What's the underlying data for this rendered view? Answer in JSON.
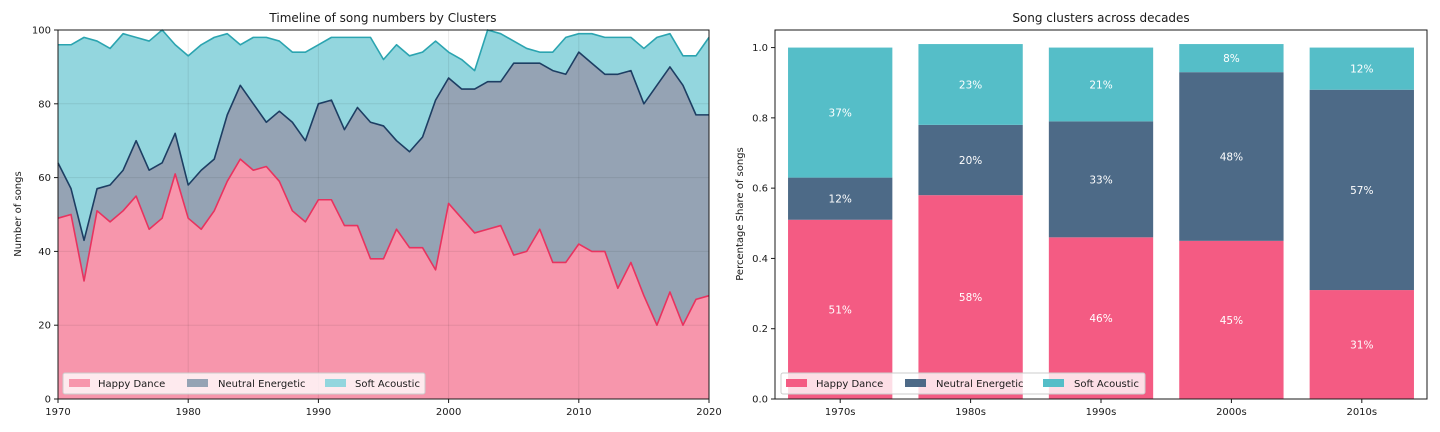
{
  "colors": {
    "happy": "#f45b83",
    "neutral": "#4d6a87",
    "soft": "#55bec8",
    "happy_line": "#e8335f",
    "neutral_line": "#1d3e63",
    "soft_line": "#2ba4b0",
    "happy_fill": "#f796ac",
    "neutral_fill": "#95a3b4",
    "soft_fill": "#93d6de"
  },
  "chart_data": [
    {
      "type": "area",
      "title": "Timeline of song numbers by Clusters",
      "xlabel": "",
      "ylabel": "Number of songs",
      "xlim": [
        1970,
        2020
      ],
      "ylim": [
        0,
        100
      ],
      "x_ticks": [
        "1970",
        "1980",
        "1990",
        "2000",
        "2010",
        "2020"
      ],
      "y_ticks": [
        "0",
        "20",
        "40",
        "60",
        "80",
        "100"
      ],
      "grid": true,
      "legend_position": "lower-left",
      "x": [
        1970,
        1971,
        1972,
        1973,
        1974,
        1975,
        1976,
        1977,
        1978,
        1979,
        1980,
        1981,
        1982,
        1983,
        1984,
        1985,
        1986,
        1987,
        1988,
        1989,
        1990,
        1991,
        1992,
        1993,
        1994,
        1995,
        1996,
        1997,
        1998,
        1999,
        2000,
        2001,
        2002,
        2003,
        2004,
        2005,
        2006,
        2007,
        2008,
        2009,
        2010,
        2011,
        2012,
        2013,
        2014,
        2015,
        2016,
        2017,
        2018,
        2019,
        2020
      ],
      "series": [
        {
          "name": "Happy Dance",
          "key": "happy",
          "values": [
            49,
            50,
            32,
            51,
            48,
            51,
            55,
            46,
            49,
            61,
            49,
            46,
            51,
            59,
            65,
            62,
            63,
            59,
            51,
            48,
            54,
            54,
            47,
            47,
            38,
            38,
            46,
            41,
            41,
            35,
            53,
            49,
            45,
            46,
            47,
            39,
            40,
            46,
            37,
            37,
            42,
            40,
            40,
            30,
            37,
            28,
            20,
            29,
            20,
            27,
            28
          ]
        },
        {
          "name": "Neutral Energetic",
          "key": "neutral",
          "values": [
            64,
            57,
            43,
            57,
            58,
            62,
            70,
            62,
            64,
            72,
            58,
            62,
            65,
            77,
            85,
            80,
            75,
            78,
            75,
            70,
            80,
            81,
            73,
            79,
            75,
            74,
            70,
            67,
            71,
            81,
            87,
            84,
            84,
            86,
            86,
            91,
            91,
            91,
            89,
            88,
            94,
            91,
            88,
            88,
            89,
            80,
            85,
            90,
            85,
            77,
            77
          ]
        },
        {
          "name": "Soft Acoustic",
          "key": "soft",
          "values": [
            96,
            96,
            98,
            97,
            95,
            99,
            98,
            97,
            100,
            96,
            93,
            96,
            98,
            99,
            96,
            98,
            98,
            97,
            94,
            94,
            96,
            98,
            98,
            98,
            98,
            92,
            96,
            93,
            94,
            97,
            94,
            92,
            89,
            100,
            99,
            97,
            95,
            94,
            94,
            98,
            99,
            99,
            98,
            98,
            98,
            95,
            98,
            99,
            93,
            93,
            98
          ]
        }
      ]
    },
    {
      "type": "bar",
      "stacked": true,
      "title": "Song clusters across decades",
      "xlabel": "",
      "ylabel": "Percentage Share of songs",
      "ylim": [
        0,
        1.05
      ],
      "y_ticks": [
        "0.0",
        "0.2",
        "0.4",
        "0.6",
        "0.8",
        "1.0"
      ],
      "legend_position": "lower-left",
      "categories": [
        "1970s",
        "1980s",
        "1990s",
        "2000s",
        "2010s"
      ],
      "series": [
        {
          "name": "Happy Dance",
          "key": "happy",
          "values": [
            0.51,
            0.58,
            0.46,
            0.45,
            0.31
          ],
          "labels": [
            "51%",
            "58%",
            "46%",
            "45%",
            "31%"
          ]
        },
        {
          "name": "Neutral Energetic",
          "key": "neutral",
          "values": [
            0.12,
            0.2,
            0.33,
            0.48,
            0.57
          ],
          "labels": [
            "12%",
            "20%",
            "33%",
            "48%",
            "57%"
          ]
        },
        {
          "name": "Soft Acoustic",
          "key": "soft",
          "values": [
            0.37,
            0.23,
            0.21,
            0.08,
            0.12
          ],
          "labels": [
            "37%",
            "23%",
            "21%",
            "8%",
            "12%"
          ]
        }
      ]
    }
  ]
}
